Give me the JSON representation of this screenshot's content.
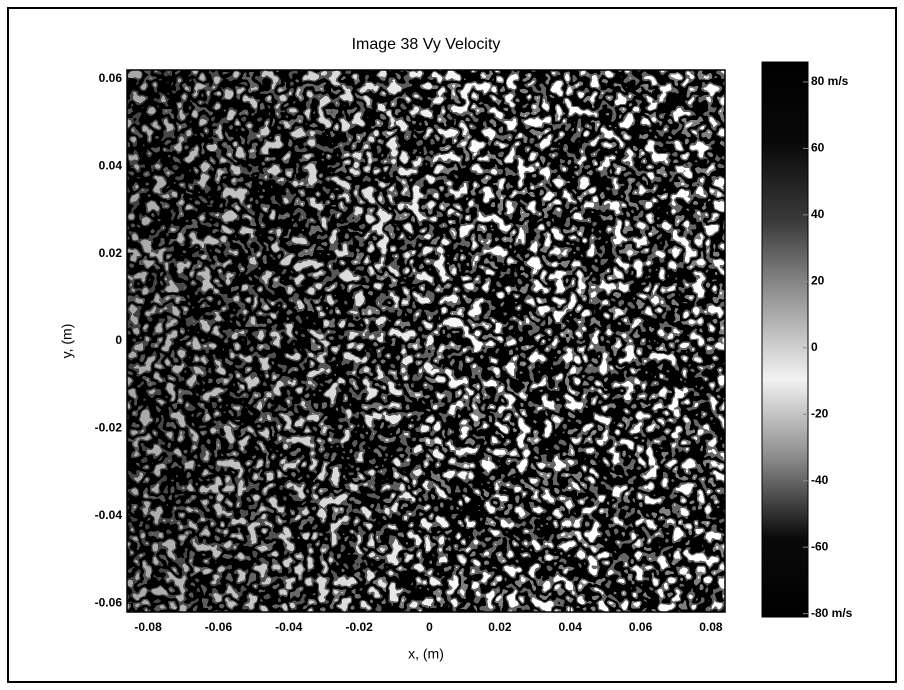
{
  "chart_data": {
    "type": "heatmap",
    "title": "Image 38 Vy Velocity",
    "xlabel": "x, (m)",
    "ylabel": "y, (m)",
    "xlim": [
      -0.086,
      0.084
    ],
    "xticks": [
      -0.08,
      -0.06,
      -0.04,
      -0.02,
      0,
      0.02,
      0.04,
      0.06,
      0.08
    ],
    "ylim": [
      -0.062,
      0.062
    ],
    "yticks": [
      -0.06,
      -0.04,
      -0.02,
      0,
      0.02,
      0.04,
      0.06
    ],
    "colorbar": {
      "lim": [
        -81,
        86
      ],
      "ticks": [
        {
          "value": -80,
          "label": "-80 m/s"
        },
        -60,
        -40,
        -20,
        0,
        20,
        40,
        60,
        {
          "value": 80,
          "label": "80 m/s"
        }
      ],
      "colors": [
        "#000000",
        "#080808",
        "#3a3a3a",
        "#9a9a9a",
        "#f2f2f2",
        "#8a8a8a",
        "#0a0a0a",
        "#000000"
      ]
    }
  }
}
